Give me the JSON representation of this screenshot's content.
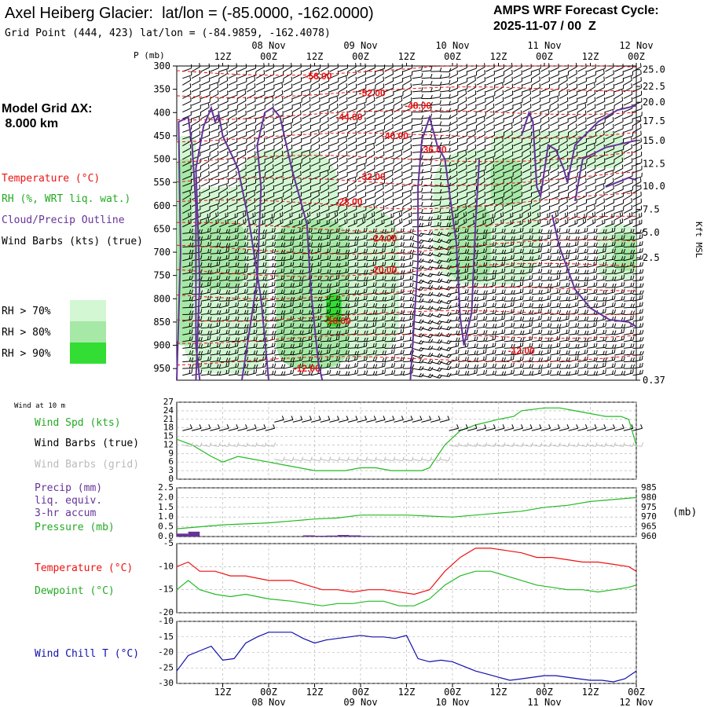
{
  "header": {
    "title": "Axel Heiberg Glacier:  lat/lon = (-85.0000, -162.0000)",
    "subtitle": "Grid Point (444, 423) lat/lon = (-84.9859, -162.4078)",
    "cycle_line1": "AMPS WRF Forecast Cycle:",
    "cycle_line2": "2025-11-07 / 00  Z"
  },
  "legend": {
    "model_grid": "Model Grid ΔX:",
    "model_grid_value": " 8.000 km",
    "temperature": "Temperature (°C)",
    "rh": "RH (%, WRT liq. wat.)",
    "cloud": "Cloud/Precip Outline",
    "wind_barbs": "Wind Barbs (kts) (true)",
    "rh_bins": [
      {
        "label": "RH > 70%",
        "color": "#d2f7d2"
      },
      {
        "label": "RH > 80%",
        "color": "#a6e8a6"
      },
      {
        "label": "RH > 90%",
        "color": "#33dd33"
      }
    ]
  },
  "colors": {
    "temperature": "#ee1111",
    "cloud": "#663399",
    "wind_speed": "#22bb22",
    "pressure": "#22bb22",
    "barb_grid": "#bbbbbb",
    "precip": "#663399",
    "dewpoint": "#22bb22",
    "windchill": "#1111aa",
    "grid_line": "#aaaaaa",
    "wind_speed_label": "#22aa22",
    "precip_label": "#663399"
  },
  "time_axis": {
    "ticks": [
      {
        "h": 12,
        "label": "12Z",
        "date": ""
      },
      {
        "h": 24,
        "label": "00Z",
        "date": "08 Nov"
      },
      {
        "h": 36,
        "label": "12Z",
        "date": ""
      },
      {
        "h": 48,
        "label": "00Z",
        "date": "09 Nov"
      },
      {
        "h": 60,
        "label": "12Z",
        "date": ""
      },
      {
        "h": 72,
        "label": "00Z",
        "date": "10 Nov"
      },
      {
        "h": 84,
        "label": "12Z",
        "date": ""
      },
      {
        "h": 96,
        "label": "00Z",
        "date": "11 Nov"
      },
      {
        "h": 108,
        "label": "12Z",
        "date": ""
      },
      {
        "h": 120,
        "label": "00Z",
        "date": "12 Nov"
      }
    ],
    "hour_range": [
      0,
      120
    ]
  },
  "chart_data": [
    {
      "type": "heatmap",
      "name": "time-pressure cross section",
      "y_axis_label": "P (mb)",
      "right_axis_label": "Kft MSL",
      "pressure_ticks": [
        300,
        350,
        400,
        450,
        500,
        550,
        600,
        650,
        700,
        750,
        800,
        850,
        900,
        950
      ],
      "pressure_range": [
        300,
        975
      ],
      "height_ticks": [
        {
          "p": 308,
          "label": "25.0"
        },
        {
          "p": 344,
          "label": "22.5"
        },
        {
          "p": 378,
          "label": "20.0"
        },
        {
          "p": 418,
          "label": "17.5"
        },
        {
          "p": 460,
          "label": "15.0"
        },
        {
          "p": 510,
          "label": "12.5"
        },
        {
          "p": 558,
          "label": "10.0"
        },
        {
          "p": 608,
          "label": "7.5"
        },
        {
          "p": 658,
          "label": "5.0"
        },
        {
          "p": 712,
          "label": "2.5"
        },
        {
          "p": 975,
          "label": "0.37"
        }
      ],
      "isotherm_labels": [
        {
          "h": 37,
          "p": 322,
          "label": "-56.00"
        },
        {
          "h": 51,
          "p": 358,
          "label": "-52.00"
        },
        {
          "h": 63,
          "p": 385,
          "label": "-48.00"
        },
        {
          "h": 45,
          "p": 410,
          "label": "-44.00"
        },
        {
          "h": 57,
          "p": 450,
          "label": "-40.00"
        },
        {
          "h": 67,
          "p": 480,
          "label": "-36.00"
        },
        {
          "h": 51,
          "p": 538,
          "label": "-32.00"
        },
        {
          "h": 45,
          "p": 592,
          "label": "-28.00"
        },
        {
          "h": 54,
          "p": 670,
          "label": "-24.00"
        },
        {
          "h": 54,
          "p": 738,
          "label": "-20.00"
        },
        {
          "h": 42,
          "p": 848,
          "label": "-16.00"
        },
        {
          "h": 90,
          "p": 912,
          "label": "-12.00"
        },
        {
          "h": 34,
          "p": 950,
          "label": "-12.00"
        }
      ]
    },
    {
      "type": "line",
      "name": "Wind at 10 m",
      "title": "Wind at 10 m",
      "ylim": [
        0,
        27
      ],
      "yticks": [
        0,
        3,
        6,
        9,
        12,
        15,
        18,
        21,
        24,
        27
      ],
      "labels": [
        "Wind Spd (kts)",
        "Wind Barbs (true)",
        "Wind Barbs (grid)"
      ],
      "series": [
        {
          "name": "Wind Spd (kts)",
          "x": [
            0,
            4,
            9,
            12,
            16,
            20,
            24,
            28,
            32,
            36,
            40,
            44,
            48,
            52,
            56,
            60,
            64,
            66,
            70,
            74,
            78,
            84,
            88,
            90,
            96,
            100,
            104,
            108,
            112,
            116,
            118,
            120
          ],
          "y": [
            14,
            12,
            8,
            6,
            8,
            7,
            6,
            5,
            4,
            3,
            3,
            3,
            4,
            4,
            3,
            3,
            3,
            4,
            12,
            17,
            19,
            21,
            22,
            24,
            25,
            25,
            24,
            23,
            22,
            22,
            21,
            12
          ]
        }
      ]
    },
    {
      "type": "line",
      "name": "Precip and Pressure",
      "labels": [
        "Precip (mm)",
        "liq. equiv.",
        "3-hr accum",
        "Pressure (mb)"
      ],
      "right_unit": "(mb)",
      "ylim_left": [
        0,
        2.5
      ],
      "yticks_left": [
        "0.0",
        "0.5",
        "1.0",
        "1.5",
        "2.0",
        "2.5"
      ],
      "ylim_right": [
        960,
        985
      ],
      "yticks_right": [
        960,
        965,
        970,
        975,
        980,
        985
      ],
      "series": [
        {
          "name": "Pressure (mb)",
          "x": [
            0,
            6,
            12,
            18,
            24,
            30,
            36,
            42,
            48,
            54,
            60,
            66,
            72,
            78,
            84,
            90,
            96,
            102,
            108,
            114,
            120
          ],
          "y": [
            964,
            965,
            966,
            966.5,
            967,
            968,
            969,
            969.5,
            971,
            971,
            971,
            970.5,
            970,
            971,
            972,
            973,
            975,
            976,
            978,
            979,
            980
          ]
        },
        {
          "name": "Precip (mm)",
          "bars": [
            {
              "x0": 0,
              "x1": 3,
              "value": 0.15
            },
            {
              "x0": 3,
              "x1": 6,
              "value": 0.25
            },
            {
              "x0": 33,
              "x1": 36,
              "value": 0.06
            },
            {
              "x0": 36,
              "x1": 39,
              "value": 0.04
            },
            {
              "x0": 39,
              "x1": 42,
              "value": 0.05
            },
            {
              "x0": 42,
              "x1": 45,
              "value": 0.08
            },
            {
              "x0": 45,
              "x1": 48,
              "value": 0.06
            },
            {
              "x0": 48,
              "x1": 51,
              "value": 0.03
            }
          ]
        }
      ]
    },
    {
      "type": "line",
      "name": "Temperature and Dewpoint",
      "labels": [
        "Temperature (°C)",
        "Dewpoint (°C)"
      ],
      "ylim": [
        -20,
        -5
      ],
      "yticks": [
        -20,
        -15,
        -10,
        -5
      ],
      "series": [
        {
          "name": "Temperature (°C)",
          "x": [
            0,
            3,
            6,
            10,
            14,
            18,
            24,
            30,
            34,
            38,
            42,
            46,
            50,
            54,
            58,
            62,
            66,
            70,
            74,
            78,
            82,
            86,
            90,
            94,
            98,
            102,
            106,
            110,
            114,
            118,
            120
          ],
          "y": [
            -10,
            -9,
            -11,
            -11,
            -12,
            -12,
            -13,
            -13,
            -14,
            -15,
            -15,
            -15.5,
            -15,
            -15,
            -15.5,
            -16,
            -15,
            -11,
            -8,
            -6,
            -6,
            -6.5,
            -7,
            -8,
            -8,
            -8.5,
            -9,
            -9,
            -9.5,
            -10,
            -11
          ]
        },
        {
          "name": "Dewpoint (°C)",
          "x": [
            0,
            3,
            6,
            10,
            14,
            18,
            24,
            30,
            34,
            38,
            42,
            46,
            50,
            54,
            58,
            62,
            66,
            70,
            74,
            78,
            82,
            86,
            90,
            94,
            98,
            102,
            106,
            110,
            114,
            118,
            120
          ],
          "y": [
            -15,
            -13,
            -15,
            -16,
            -16.5,
            -16,
            -17,
            -17.5,
            -18,
            -18.5,
            -18,
            -18,
            -17.5,
            -17.5,
            -18.5,
            -18.5,
            -17,
            -14,
            -12,
            -11,
            -11,
            -12,
            -13,
            -14,
            -14.5,
            -15,
            -15,
            -15.5,
            -15,
            -14.5,
            -14
          ]
        }
      ]
    },
    {
      "type": "line",
      "name": "Wind Chill",
      "labels": [
        "Wind Chill T (°C)"
      ],
      "ylim": [
        -30,
        -10
      ],
      "yticks": [
        -30,
        -25,
        -20,
        -15,
        -10
      ],
      "series": [
        {
          "name": "Wind Chill T (°C)",
          "x": [
            0,
            3,
            6,
            9,
            12,
            15,
            18,
            21,
            24,
            27,
            30,
            33,
            36,
            39,
            42,
            45,
            48,
            51,
            54,
            57,
            60,
            63,
            66,
            69,
            72,
            75,
            78,
            81,
            84,
            87,
            90,
            93,
            96,
            99,
            102,
            105,
            108,
            111,
            114,
            117,
            120
          ],
          "y": [
            -26,
            -21,
            -19.5,
            -18,
            -22.5,
            -22,
            -17,
            -15,
            -13.5,
            -13.5,
            -13.5,
            -15.5,
            -17,
            -16,
            -15.5,
            -15,
            -14.5,
            -15,
            -15,
            -15.5,
            -14.5,
            -22,
            -23,
            -22.5,
            -23,
            -24.5,
            -26,
            -27,
            -28,
            -29,
            -28.5,
            -28,
            -27.5,
            -27.5,
            -28,
            -28.5,
            -29,
            -29,
            -29.5,
            -28.5,
            -26
          ]
        }
      ]
    }
  ]
}
